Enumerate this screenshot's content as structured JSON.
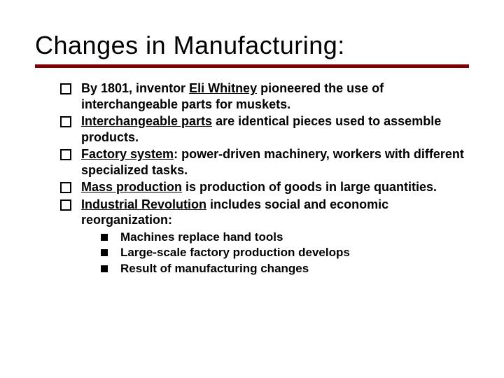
{
  "title": "Changes in Manufacturing:",
  "colors": {
    "underline": "#800000",
    "text": "#000000",
    "background": "#ffffff"
  },
  "typography": {
    "title_fontsize": 36,
    "body_fontsize": 18,
    "sub_fontsize": 17,
    "font_family": "Verdana",
    "body_weight": "bold"
  },
  "bullets": [
    {
      "segments": [
        {
          "text": "By 1801, inventor ",
          "underline": false
        },
        {
          "text": "Eli Whitney",
          "underline": true
        },
        {
          "text": " pioneered the use of interchangeable parts for muskets.",
          "underline": false
        }
      ]
    },
    {
      "segments": [
        {
          "text": "Interchangeable parts",
          "underline": true
        },
        {
          "text": " are identical pieces used to assemble products.",
          "underline": false
        }
      ]
    },
    {
      "segments": [
        {
          "text": "Factory system",
          "underline": true
        },
        {
          "text": ": power-driven machinery, workers with different specialized tasks.",
          "underline": false
        }
      ]
    },
    {
      "segments": [
        {
          "text": "Mass production",
          "underline": true
        },
        {
          "text": " is production of goods in large quantities.",
          "underline": false
        }
      ]
    },
    {
      "segments": [
        {
          "text": "Industrial Revolution",
          "underline": true
        },
        {
          "text": " includes social and economic reorganization:",
          "underline": false
        }
      ],
      "children": [
        {
          "text": "Machines replace hand tools"
        },
        {
          "text": "Large-scale factory production develops"
        },
        {
          "text": "Result of manufacturing changes"
        }
      ]
    }
  ]
}
